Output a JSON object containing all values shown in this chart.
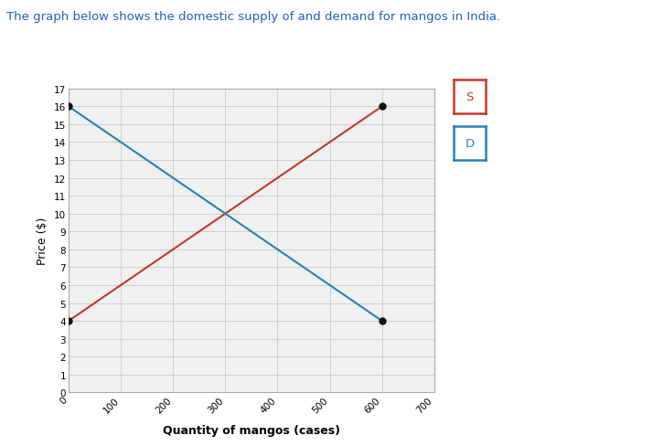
{
  "title": "The graph below shows the domestic supply of and demand for mangos in India.",
  "title_color": "#2060c0",
  "xlabel": "Quantity of mangos (cases)",
  "ylabel": "Price ($)",
  "supply": {
    "x": [
      0,
      600
    ],
    "y": [
      4,
      16
    ],
    "color": "#c0392b",
    "label": "S"
  },
  "demand": {
    "x": [
      0,
      600
    ],
    "y": [
      16,
      4
    ],
    "color": "#2980b9",
    "label": "D"
  },
  "xlim": [
    0,
    700
  ],
  "ylim": [
    0,
    17
  ],
  "xticks": [
    0,
    100,
    200,
    300,
    400,
    500,
    600,
    700
  ],
  "yticks": [
    0,
    1,
    2,
    3,
    4,
    5,
    6,
    7,
    8,
    9,
    10,
    11,
    12,
    13,
    14,
    15,
    16,
    17
  ],
  "grid_color": "#d0d0d0",
  "background_color": "#ffffff",
  "plot_bg_color": "#f0f0f0",
  "marker_color": "#111111",
  "marker_size": 5,
  "legend_s_color": "#c0392b",
  "legend_d_color": "#2980b9"
}
